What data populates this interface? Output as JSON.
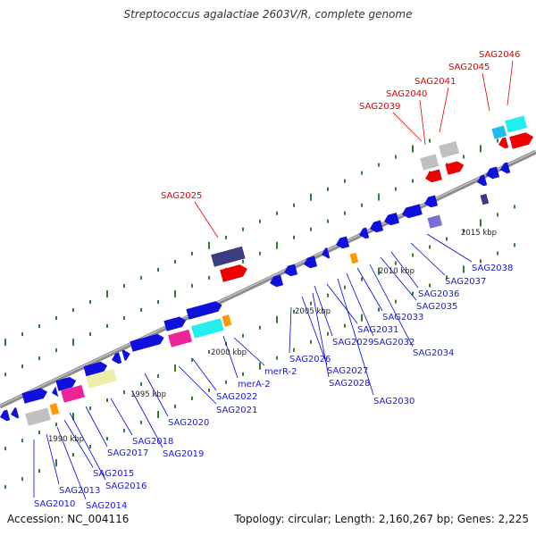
{
  "title": "Streptococcus agalactiae 2603V/R, complete genome",
  "footer": {
    "accession": "Accession: NC_004116",
    "topology": "Topology: circular; Length: 2,160,267 bp; Genes: 2,225"
  },
  "colors": {
    "backbone": "#8c8c8c",
    "tick": "#2e7d32",
    "label_blue": "#1a1acc",
    "label_red": "#dd0000",
    "leader_blue": "#0000dd",
    "leader_red": "#dd0000",
    "gene_blue": "#1010dd",
    "gene_red": "#ee0000",
    "gene_navy": "#3c3c80",
    "gene_lavender": "#7a6fd8",
    "gene_gray": "#c0c0c0",
    "gene_orange": "#ff9900",
    "gene_pink": "#ee2299",
    "gene_cyan": "#22eeee",
    "gene_khaki": "#eeeeaa",
    "gene_skyblue": "#22bbee"
  },
  "scale_labels": [
    "1990 kbp",
    "1995 kbp",
    "2000 kbp",
    "2005 kbp",
    "2010 kbp",
    "2015 kbp"
  ],
  "gene_labels": [
    "SAG2010",
    "SAG2013",
    "SAG2014",
    "SAG2015",
    "SAG2016",
    "SAG2017",
    "SAG2018",
    "SAG2019",
    "SAG2020",
    "SAG2021",
    "SAG2022",
    "merA-2",
    "merR-2",
    "SAG2026",
    "SAG2027",
    "SAG2028",
    "SAG2029",
    "SAG2030",
    "SAG2031",
    "SAG2032",
    "SAG2033",
    "SAG2034",
    "SAG2035",
    "SAG2036",
    "SAG2037",
    "SAG2038",
    "SAG2025",
    "SAG2039",
    "SAG2040",
    "SAG2041",
    "SAG2045",
    "SAG2046"
  ]
}
